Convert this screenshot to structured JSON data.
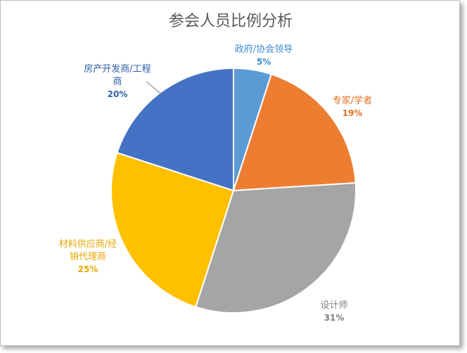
{
  "chart_data": {
    "type": "pie",
    "title": "参会人员比例分析",
    "slices": [
      {
        "label": "政府/协会领导",
        "value": 5,
        "display": "5%",
        "color": "#5B9BD5"
      },
      {
        "label": "专家/学者",
        "value": 19,
        "display": "19%",
        "color": "#ED7D31"
      },
      {
        "label": "设计师",
        "value": 31,
        "display": "31%",
        "color": "#A5A5A5"
      },
      {
        "label": "材料供应商/经销代理商",
        "value": 25,
        "display": "25%",
        "color": "#FFC000"
      },
      {
        "label": "房产开发商/工程商",
        "value": 20,
        "display": "20%",
        "color": "#4472C4"
      }
    ],
    "legend": "none",
    "data_labels": "outside"
  }
}
